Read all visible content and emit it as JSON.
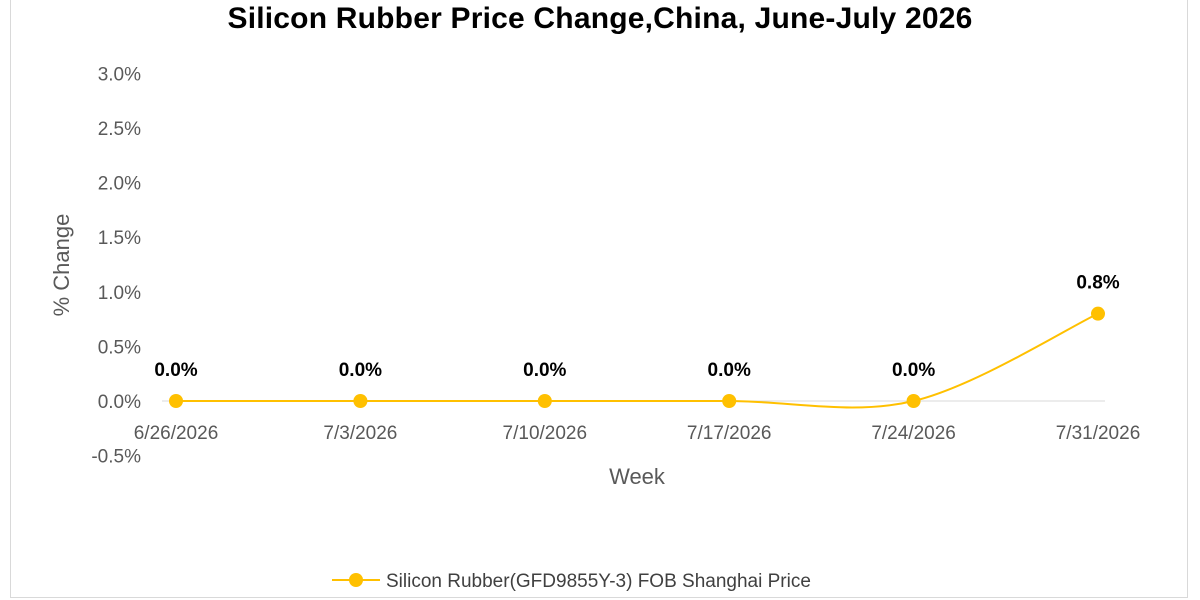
{
  "chart_data": {
    "type": "line",
    "title": "Silicon Rubber Price Change,China, June-July 2026",
    "xlabel": "Week",
    "ylabel": "% Change",
    "categories": [
      "6/26/2026",
      "7/3/2026",
      "7/10/2026",
      "7/17/2026",
      "7/24/2026",
      "7/31/2026"
    ],
    "series": [
      {
        "name": "Silicon Rubber(GFD9855Y-3) FOB Shanghai Price",
        "values": [
          0.0,
          0.0,
          0.0,
          0.0,
          0.0,
          0.8
        ],
        "data_labels": [
          "0.0%",
          "0.0%",
          "0.0%",
          "0.0%",
          "0.0%",
          "0.8%"
        ],
        "color": "#FFC000"
      }
    ],
    "ylim": [
      -0.5,
      3.0
    ],
    "yticks": [
      -0.5,
      0.0,
      0.5,
      1.0,
      1.5,
      2.0,
      2.5,
      3.0
    ],
    "ytick_labels": [
      "-0.5%",
      "0.0%",
      "0.5%",
      "1.0%",
      "1.5%",
      "2.0%",
      "2.5%",
      "3.0%"
    ],
    "smooth": true,
    "grid": false,
    "legend_position": "bottom"
  }
}
